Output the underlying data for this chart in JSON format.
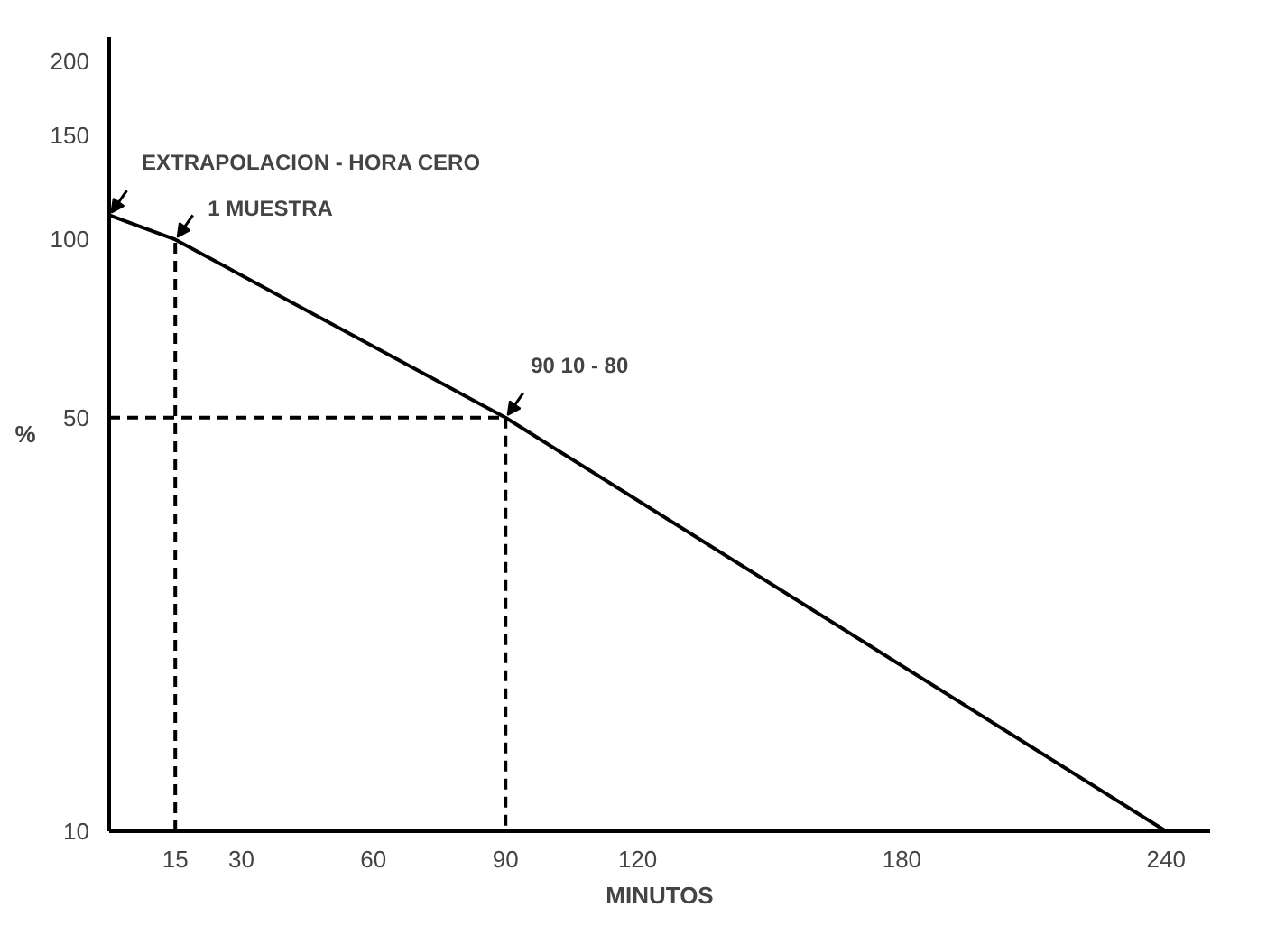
{
  "chart_data": {
    "type": "line",
    "xlabel": "MINUTOS",
    "ylabel": "%",
    "log": "y",
    "grid": false,
    "marker": "none",
    "xlim": [
      0,
      250
    ],
    "xticks": [
      15,
      30,
      60,
      90,
      120,
      180,
      240
    ],
    "ylim": [
      10,
      220
    ],
    "yticks": [
      10,
      50,
      100,
      150,
      200
    ],
    "series": [
      {
        "color": "#000000",
        "line_style": "solid",
        "x": [
          0,
          15,
          90,
          240
        ],
        "values": [
          110,
          100,
          50,
          10
        ]
      },
      {
        "color": "#000000",
        "line_style": "dashed",
        "x": [
          15,
          15
        ],
        "values": [
          10,
          100
        ]
      },
      {
        "color": "#000000",
        "line_style": "dashed",
        "x": [
          0,
          90
        ],
        "values": [
          50,
          50
        ]
      },
      {
        "color": "#000000",
        "line_style": "dashed",
        "x": [
          90,
          90
        ],
        "values": [
          50,
          10
        ]
      }
    ],
    "annotations": [
      {
        "text": "EXTRAPOLACION - HORA CERO",
        "x": 0,
        "y": 110
      },
      {
        "text": "1 MUESTRA",
        "x": 15,
        "y": 100
      },
      {
        "text": "90   10 - 80",
        "x": 90,
        "y": 50
      }
    ]
  }
}
